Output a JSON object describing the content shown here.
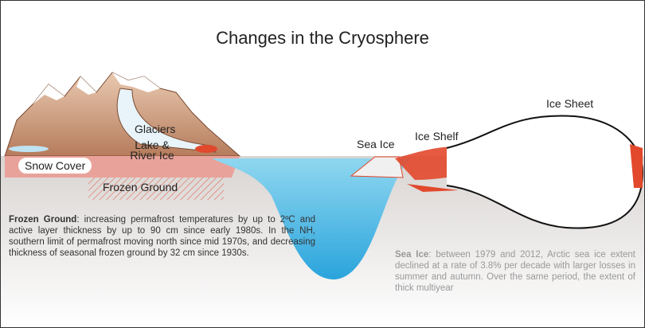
{
  "title": "Changes in the Cryosphere",
  "labels": {
    "glaciers": "Glaciers",
    "lake_river_ice": "Lake & River Ice",
    "snow_cover": "Snow Cover",
    "frozen_ground": "Frozen Ground",
    "sea_ice": "Sea Ice",
    "ice_shelf": "Ice Shelf",
    "ice_sheet": "Ice Sheet"
  },
  "notes": [
    {
      "heading": "Frozen Ground",
      "text": ": increasing permafrost temperatures by up to 2ºC and active layer thickness by up to 90 cm since early 1980s. In the NH, southern limit of permafrost moving north since mid 1970s, and decreasing thickness of seasonal frozen ground by 32 cm since 1930s."
    },
    {
      "heading": "Sea Ice",
      "text": ": between 1979 and 2012, Arctic sea ice extent declined at a rate of 3.8% per decade with larger losses in summer and autumn. Over the same period, the extent of thick multiyear"
    }
  ]
}
